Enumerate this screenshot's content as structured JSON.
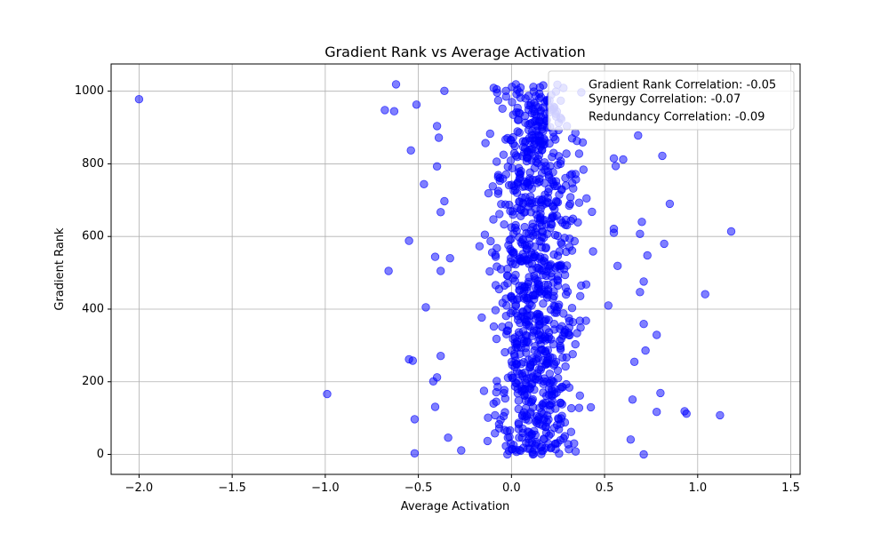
{
  "chart_data": {
    "type": "scatter",
    "title": "Gradient Rank vs Average Activation",
    "xlabel": "Average Activation",
    "ylabel": "Gradient Rank",
    "xlim": [
      -2.15,
      1.55
    ],
    "ylim": [
      -55,
      1075
    ],
    "xticks": [
      -2.0,
      -1.5,
      -1.0,
      -0.5,
      0.0,
      0.5,
      1.0,
      1.5
    ],
    "xtick_labels": [
      "−2.0",
      "−1.5",
      "−1.0",
      "−0.5",
      "0.0",
      "0.5",
      "1.0",
      "1.5"
    ],
    "yticks": [
      0,
      200,
      400,
      600,
      800,
      1000
    ],
    "ytick_labels": [
      "0",
      "200",
      "400",
      "600",
      "800",
      "1000"
    ],
    "grid": true,
    "legend_position": "top-right",
    "legend": [
      "Gradient Rank Correlation: -0.05",
      "Synergy Correlation: -0.07",
      "Redundancy Correlation: -0.09"
    ],
    "point_color": "#0000ff",
    "point_alpha": 0.5,
    "series": [
      {
        "points": [
          [
            -2.0,
            978
          ],
          [
            -0.99,
            166
          ],
          [
            -0.62,
            1019
          ],
          [
            -0.68,
            948
          ],
          [
            -0.63,
            945
          ],
          [
            -0.66,
            505
          ],
          [
            -0.55,
            588
          ],
          [
            -0.55,
            262
          ],
          [
            -0.53,
            258
          ],
          [
            -0.52,
            97
          ],
          [
            -0.52,
            3
          ],
          [
            -0.54,
            837
          ],
          [
            -0.51,
            963
          ],
          [
            -0.47,
            744
          ],
          [
            -0.46,
            405
          ],
          [
            -0.42,
            201
          ],
          [
            -0.4,
            212
          ],
          [
            -0.41,
            131
          ],
          [
            -0.4,
            904
          ],
          [
            -0.39,
            872
          ],
          [
            -0.38,
            667
          ],
          [
            -0.41,
            544
          ],
          [
            -0.36,
            1001
          ],
          [
            -0.38,
            271
          ],
          [
            -0.34,
            46
          ],
          [
            -0.27,
            11
          ],
          [
            -0.4,
            793
          ],
          [
            -0.38,
            505
          ],
          [
            -0.36,
            697
          ],
          [
            -0.33,
            540
          ],
          [
            1.18,
            614
          ],
          [
            1.04,
            441
          ],
          [
            0.93,
            119
          ],
          [
            0.94,
            112
          ],
          [
            1.12,
            108
          ],
          [
            0.85,
            690
          ],
          [
            0.82,
            580
          ],
          [
            0.81,
            822
          ],
          [
            0.8,
            169
          ],
          [
            0.78,
            329
          ],
          [
            0.78,
            117
          ],
          [
            0.73,
            548
          ],
          [
            0.72,
            286
          ],
          [
            0.71,
            476
          ],
          [
            0.71,
            359
          ],
          [
            0.71,
            0
          ],
          [
            0.69,
            447
          ],
          [
            0.7,
            640
          ],
          [
            0.69,
            607
          ],
          [
            0.68,
            878
          ],
          [
            0.66,
            255
          ],
          [
            0.65,
            151
          ],
          [
            0.64,
            41
          ],
          [
            0.6,
            812
          ],
          [
            0.55,
            815
          ],
          [
            0.56,
            794
          ],
          [
            0.57,
            519
          ],
          [
            0.55,
            621
          ],
          [
            0.55,
            610
          ],
          [
            0.52,
            410
          ]
        ]
      }
    ]
  }
}
